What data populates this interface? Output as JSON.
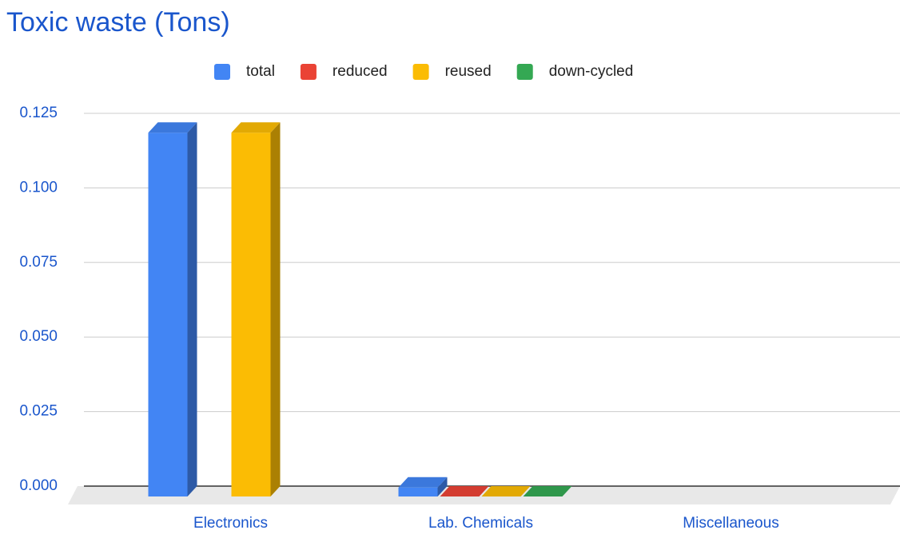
{
  "chart_data": {
    "type": "bar3d",
    "title": "Toxic waste (Tons)",
    "categories": [
      "Electronics",
      "Lab. Chemicals",
      "Miscellaneous"
    ],
    "series": [
      {
        "name": "total",
        "color": "#4285f4",
        "values": [
          0.122,
          0.003,
          null
        ]
      },
      {
        "name": "reduced",
        "color": "#ea4335",
        "values": [
          null,
          0,
          null
        ]
      },
      {
        "name": "reused",
        "color": "#fbbc04",
        "values": [
          0.122,
          0,
          null
        ]
      },
      {
        "name": "down-cycled",
        "color": "#34a853",
        "values": [
          null,
          0,
          null
        ]
      }
    ],
    "ylim": [
      0,
      0.125
    ],
    "yticks": [
      {
        "value": 0,
        "label": "0.000"
      },
      0.025,
      {
        "value": 0.05,
        "label": "0.050"
      },
      0.075,
      {
        "value": 0.1,
        "label": "0.100"
      },
      0.125
    ],
    "grid": true,
    "legend": "top"
  }
}
